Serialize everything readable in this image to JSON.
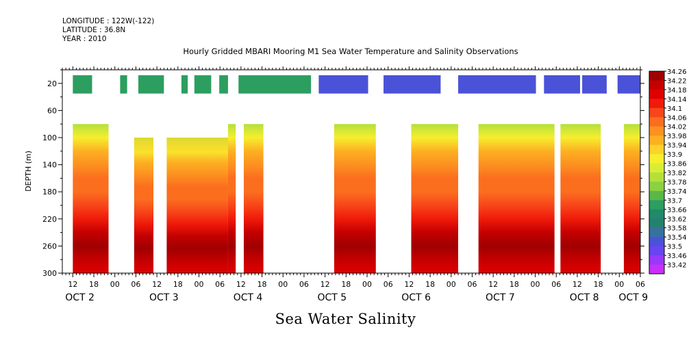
{
  "header": {
    "longitude": "LONGITUDE : 122W(-122)",
    "latitude": "LATITUDE : 36.8N",
    "year": "YEAR : 2010",
    "title": "Hourly Gridded MBARI Mooring M1 Sea Water Temperature and Salinity Observations"
  },
  "footer": {
    "subtitle": "Sea Water Salinity"
  },
  "chart_data": {
    "type": "heatmap",
    "variable": "Sea Water Salinity",
    "ylabel": "DEPTH (m)",
    "ylim": [
      0,
      300
    ],
    "y_reversed": true,
    "y_ticks": [
      20,
      60,
      100,
      140,
      180,
      220,
      260,
      300
    ],
    "xlim_hours": [
      -15,
      150
    ],
    "x_hour_labels": [
      {
        "h": -12,
        "text": "12"
      },
      {
        "h": -6,
        "text": "18"
      },
      {
        "h": 0,
        "text": "00"
      },
      {
        "h": 6,
        "text": "06"
      },
      {
        "h": 12,
        "text": "12"
      },
      {
        "h": 18,
        "text": "18"
      },
      {
        "h": 24,
        "text": "00"
      },
      {
        "h": 30,
        "text": "06"
      },
      {
        "h": 36,
        "text": "12"
      },
      {
        "h": 42,
        "text": "18"
      },
      {
        "h": 48,
        "text": "00"
      },
      {
        "h": 54,
        "text": "06"
      },
      {
        "h": 60,
        "text": "12"
      },
      {
        "h": 66,
        "text": "18"
      },
      {
        "h": 72,
        "text": "00"
      },
      {
        "h": 78,
        "text": "06"
      },
      {
        "h": 84,
        "text": "12"
      },
      {
        "h": 90,
        "text": "18"
      },
      {
        "h": 96,
        "text": "00"
      },
      {
        "h": 102,
        "text": "06"
      },
      {
        "h": 108,
        "text": "12"
      },
      {
        "h": 114,
        "text": "18"
      },
      {
        "h": 120,
        "text": "00"
      },
      {
        "h": 126,
        "text": "06"
      },
      {
        "h": 132,
        "text": "12"
      },
      {
        "h": 138,
        "text": "18"
      },
      {
        "h": 144,
        "text": "00"
      },
      {
        "h": 150,
        "text": "06"
      }
    ],
    "x_day_labels": [
      {
        "h": -10,
        "text": "OCT  2"
      },
      {
        "h": 14,
        "text": "OCT  3"
      },
      {
        "h": 38,
        "text": "OCT  4"
      },
      {
        "h": 62,
        "text": "OCT  5"
      },
      {
        "h": 86,
        "text": "OCT  6"
      },
      {
        "h": 110,
        "text": "OCT  7"
      },
      {
        "h": 134,
        "text": "OCT  8"
      },
      {
        "h": 148,
        "text": "OCT  9"
      }
    ],
    "colorbar": {
      "levels": [
        34.26,
        34.22,
        34.18,
        34.14,
        34.1,
        34.06,
        34.02,
        33.98,
        33.94,
        33.9,
        33.86,
        33.82,
        33.78,
        33.74,
        33.7,
        33.66,
        33.62,
        33.58,
        33.54,
        33.5,
        33.46,
        33.42
      ],
      "labels": [
        "34.26",
        "34.22",
        "34.18",
        "34.14",
        "34.1",
        "34.06",
        "34.02",
        "33.98",
        "33.94",
        "33.9",
        "33.86",
        "33.82",
        "33.78",
        "33.74",
        "33.7",
        "33.66",
        "33.62",
        "33.58",
        "33.54",
        "33.5",
        "33.46",
        "33.42"
      ],
      "colors": [
        "#a00000",
        "#c40000",
        "#e00000",
        "#f01a0a",
        "#f8461a",
        "#fb6e1e",
        "#fc9120",
        "#fdb022",
        "#fdd22a",
        "#f6ee2e",
        "#d8ee34",
        "#b4e03c",
        "#8cd240",
        "#5ab848",
        "#2c9e60",
        "#208a6a",
        "#26806e",
        "#3572a0",
        "#4a52d8",
        "#6a44f0",
        "#9838f8",
        "#c830f8"
      ]
    },
    "surface_layer": {
      "depth_range": [
        8,
        35
      ],
      "salinity_before_oct6": 33.66,
      "salinity_after_oct6": 33.52
    },
    "gap_depth_range": [
      35,
      80
    ],
    "salinity_profile_deep": [
      {
        "depth": 80,
        "salinity": 33.8
      },
      {
        "depth": 100,
        "salinity": 33.87
      },
      {
        "depth": 120,
        "salinity": 33.94
      },
      {
        "depth": 140,
        "salinity": 33.98
      },
      {
        "depth": 160,
        "salinity": 34.02
      },
      {
        "depth": 180,
        "salinity": 34.04
      },
      {
        "depth": 200,
        "salinity": 34.06
      },
      {
        "depth": 220,
        "salinity": 34.12
      },
      {
        "depth": 240,
        "salinity": 34.2
      },
      {
        "depth": 260,
        "salinity": 34.25
      },
      {
        "depth": 280,
        "salinity": 34.21
      },
      {
        "depth": 300,
        "salinity": 34.17
      }
    ],
    "surface_data_intervals_hours": [
      [
        -12,
        56
      ],
      [
        56,
        150
      ]
    ],
    "surface_missing_intervals_hours": [
      [
        -6.5,
        1.5
      ],
      [
        3.5,
        6.7
      ],
      [
        14,
        19
      ],
      [
        20.8,
        22.7
      ],
      [
        27.5,
        29.8
      ],
      [
        32.3,
        35.3
      ],
      [
        56,
        58.2
      ],
      [
        72.3,
        76.7
      ],
      [
        93,
        98
      ],
      [
        120.2,
        122.5
      ],
      [
        132.8,
        133.4
      ],
      [
        140.4,
        143.5
      ]
    ],
    "deep_data_intervals_hours": [
      {
        "start": -12,
        "end": -1.8,
        "top": 80
      },
      {
        "start": 5.5,
        "end": 11,
        "top": 100
      },
      {
        "start": 14.8,
        "end": 32.3,
        "top": 100
      },
      {
        "start": 32.3,
        "end": 34.5,
        "top": 80
      },
      {
        "start": 36.8,
        "end": 42.4,
        "top": 80
      },
      {
        "start": 62.6,
        "end": 74.5,
        "top": 80
      },
      {
        "start": 84.6,
        "end": 98,
        "top": 80
      },
      {
        "start": 103.8,
        "end": 125.5,
        "top": 80
      },
      {
        "start": 127.2,
        "end": 138.7,
        "top": 80
      },
      {
        "start": 145.3,
        "end": 150,
        "top": 80
      }
    ]
  }
}
